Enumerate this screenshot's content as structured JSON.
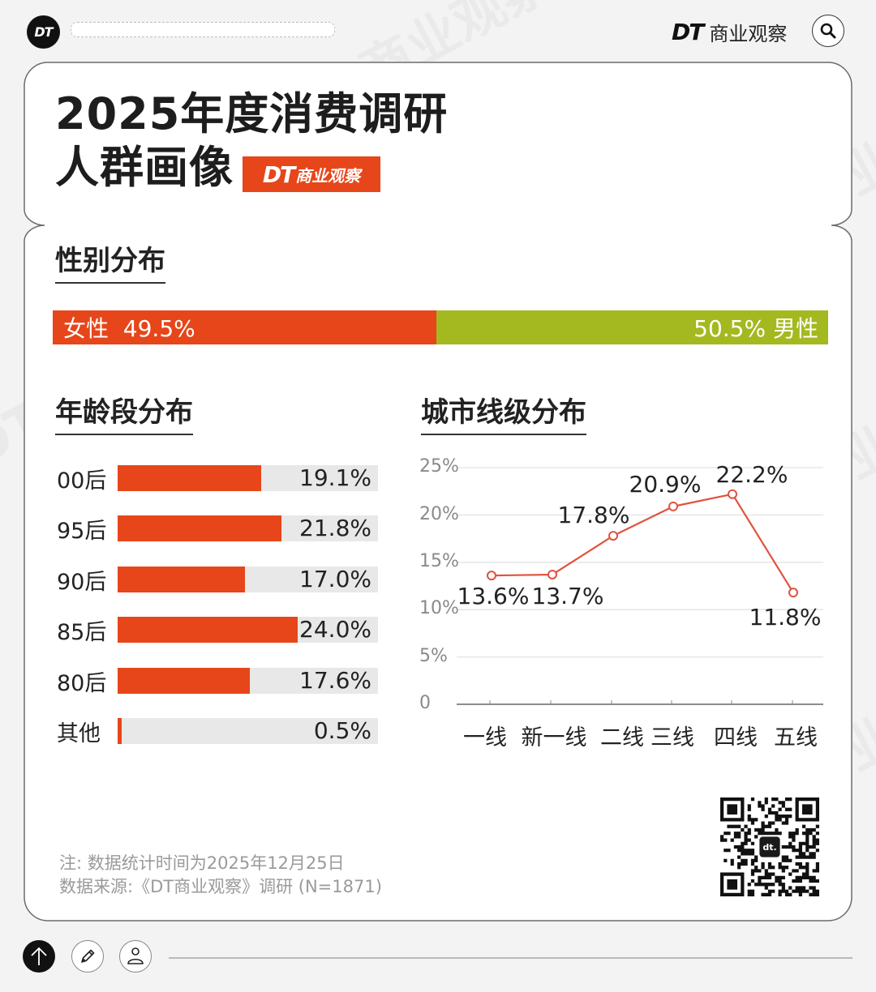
{
  "header": {
    "logo_text": "DT",
    "brand_dt": "DT",
    "brand_name": "商业观察",
    "search_icon": "search-icon"
  },
  "card": {
    "title_line1": "2025年度消费调研",
    "title_line2": "人群画像",
    "badge_dt": "DT",
    "badge_name": "商业观察"
  },
  "gender": {
    "heading": "性别分布",
    "female": {
      "label": "女性",
      "value": "49.5%",
      "pct": 49.5,
      "color": "#e6461a"
    },
    "male": {
      "label": "男性",
      "value": "50.5%",
      "pct": 50.5,
      "color": "#a4b91f"
    },
    "female_text": "女性  49.5%",
    "male_text": "50.5% 男性"
  },
  "age": {
    "heading": "年龄段分布",
    "scale_max": 34.7,
    "items": [
      {
        "label": "00后",
        "value": "19.1%",
        "pct": 19.1
      },
      {
        "label": "95后",
        "value": "21.8%",
        "pct": 21.8
      },
      {
        "label": "90后",
        "value": "17.0%",
        "pct": 17.0
      },
      {
        "label": "85后",
        "value": "24.0%",
        "pct": 24.0
      },
      {
        "label": "80后",
        "value": "17.6%",
        "pct": 17.6
      },
      {
        "label": "其他",
        "value": "0.5%",
        "pct": 0.5
      }
    ]
  },
  "city": {
    "heading": "城市线级分布",
    "yticks": [
      "0",
      "5%",
      "10%",
      "15%",
      "20%",
      "25%"
    ],
    "categories": [
      "一线",
      "新一线",
      "二线",
      "三线",
      "四线",
      "五线"
    ],
    "values": [
      13.6,
      13.7,
      17.8,
      20.9,
      22.2,
      11.8
    ],
    "value_labels": [
      "13.6%",
      "13.7%",
      "17.8%",
      "20.9%",
      "22.2%",
      "11.8%"
    ],
    "line_color": "#e0533f"
  },
  "chart_data": [
    {
      "type": "bar",
      "title": "性别分布",
      "orientation": "horizontal-stacked",
      "categories": [
        "女性",
        "男性"
      ],
      "values": [
        49.5,
        50.5
      ],
      "unit": "%",
      "colors": [
        "#e6461a",
        "#a4b91f"
      ]
    },
    {
      "type": "bar",
      "title": "年龄段分布",
      "orientation": "horizontal",
      "categories": [
        "00后",
        "95后",
        "90后",
        "85后",
        "80后",
        "其他"
      ],
      "values": [
        19.1,
        21.8,
        17.0,
        24.0,
        17.6,
        0.5
      ],
      "unit": "%",
      "colors": [
        "#e6461a"
      ],
      "grid": false
    },
    {
      "type": "line",
      "title": "城市线级分布",
      "categories": [
        "一线",
        "新一线",
        "二线",
        "三线",
        "四线",
        "五线"
      ],
      "values": [
        13.6,
        13.7,
        17.8,
        20.9,
        22.2,
        11.8
      ],
      "unit": "%",
      "xlabel": "",
      "ylabel": "",
      "ylim": [
        0,
        25
      ],
      "yticks": [
        "0",
        "5%",
        "10%",
        "15%",
        "20%",
        "25%"
      ],
      "grid": true,
      "legend": "none",
      "markers": "hollow-circle",
      "color": "#e0533f"
    }
  ],
  "footer": {
    "note": "注: 数据统计时间为2025年12月25日",
    "source": "数据来源:《DT商业观察》调研 (N=1871)",
    "qr_center": "dt."
  },
  "toolbar": {
    "buttons": [
      {
        "icon": "arrow-up-icon"
      },
      {
        "icon": "pencil-icon"
      },
      {
        "icon": "user-icon"
      }
    ]
  }
}
